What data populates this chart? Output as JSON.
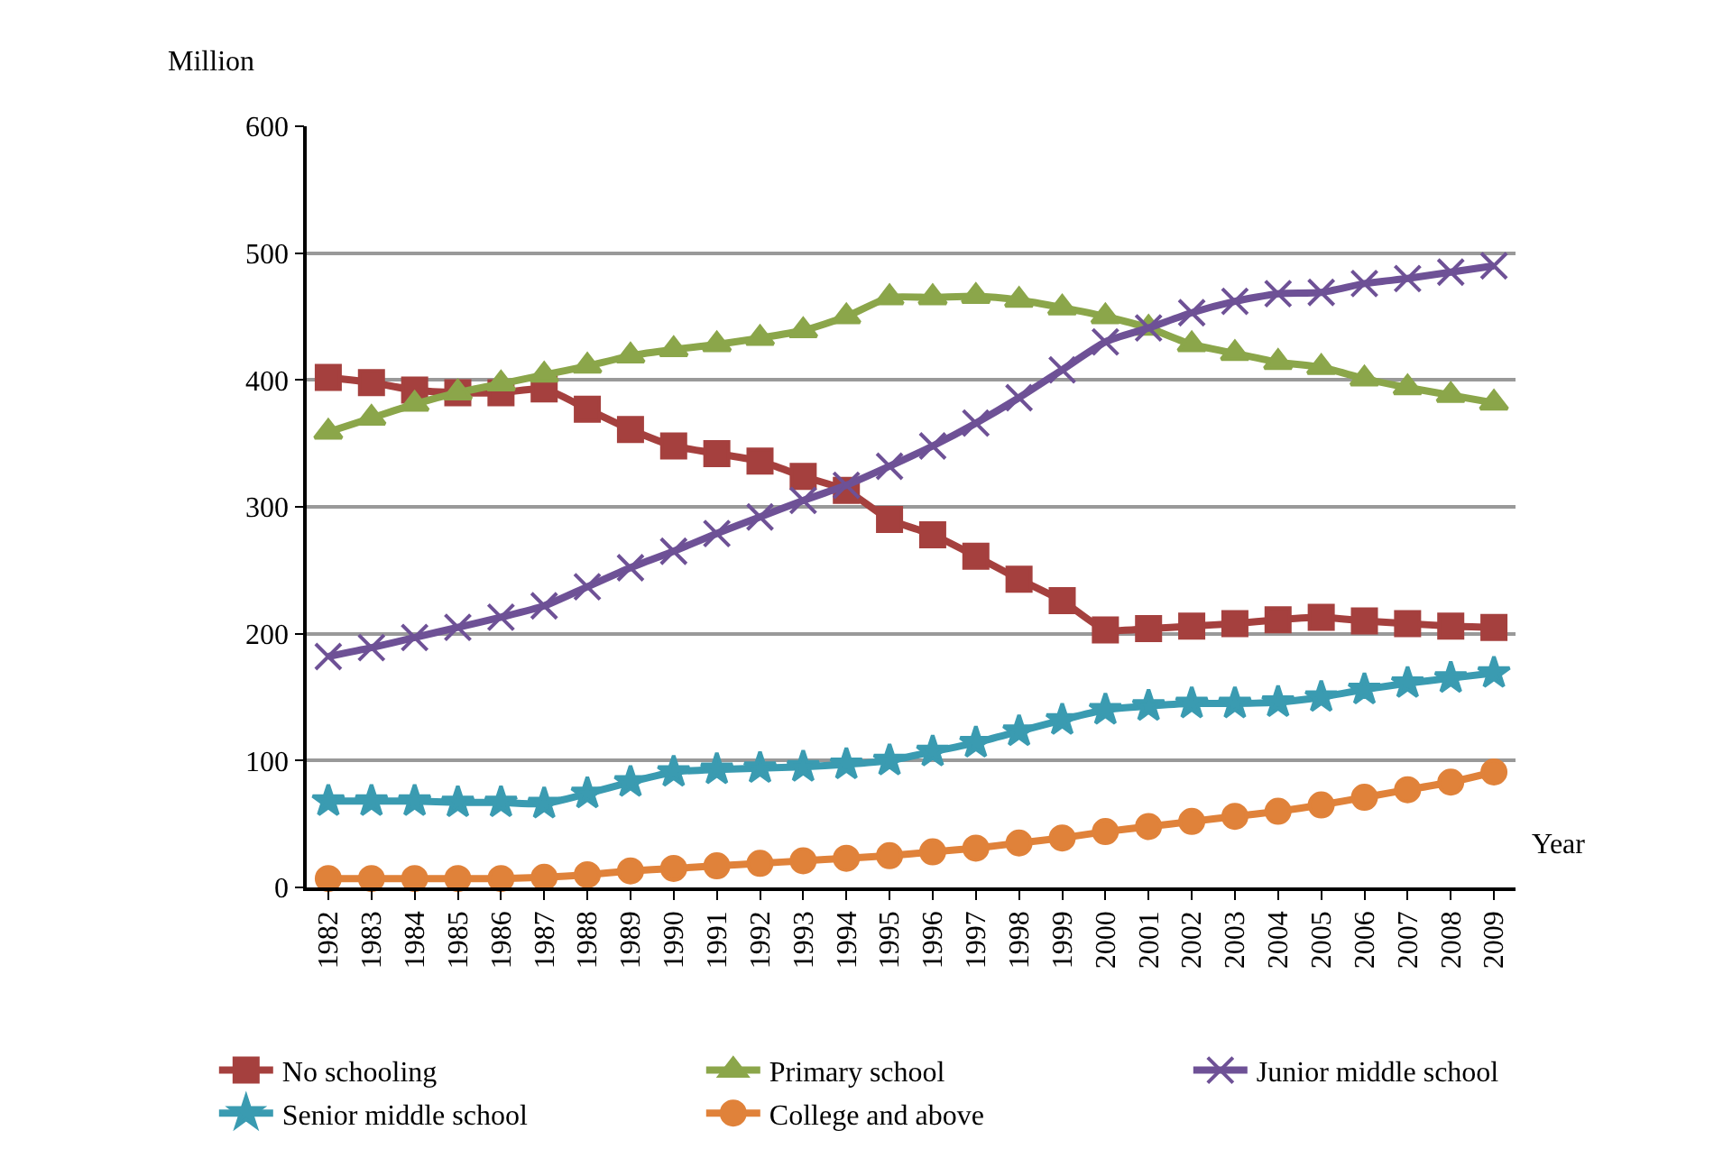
{
  "chart_data": {
    "type": "line",
    "ylabel": "Million",
    "xlabel": "Year",
    "categories": [
      "1982",
      "1983",
      "1984",
      "1985",
      "1986",
      "1987",
      "1988",
      "1989",
      "1990",
      "1991",
      "1992",
      "1993",
      "1994",
      "1995",
      "1996",
      "1997",
      "1998",
      "1999",
      "2000",
      "2001",
      "2002",
      "2003",
      "2004",
      "2005",
      "2006",
      "2007",
      "2008",
      "2009"
    ],
    "ylim": [
      0,
      600
    ],
    "yticks": [
      0,
      100,
      200,
      300,
      400,
      500,
      600
    ],
    "grid": "y",
    "legend": "bottom",
    "line_style": "solid",
    "series": [
      {
        "name": "No schooling",
        "color": "#a5403e",
        "marker": "square",
        "values": [
          402,
          398,
          392,
          390,
          390,
          393,
          377,
          361,
          348,
          342,
          336,
          324,
          313,
          290,
          278,
          261,
          243,
          226,
          203,
          204,
          206,
          208,
          211,
          213,
          210,
          208,
          206,
          205
        ]
      },
      {
        "name": "Primary school",
        "color": "#8ba64a",
        "marker": "triangle",
        "values": [
          359,
          370,
          381,
          390,
          397,
          404,
          411,
          419,
          424,
          428,
          433,
          439,
          450,
          465,
          465,
          466,
          463,
          457,
          450,
          441,
          428,
          421,
          414,
          410,
          401,
          394,
          388,
          382
        ]
      },
      {
        "name": "Junior middle school",
        "color": "#6e5196",
        "marker": "cross",
        "values": [
          182,
          189,
          197,
          205,
          213,
          222,
          237,
          252,
          265,
          279,
          292,
          305,
          317,
          332,
          348,
          366,
          386,
          408,
          430,
          441,
          453,
          462,
          468,
          469,
          476,
          480,
          485,
          490
        ]
      },
      {
        "name": "Senior middle school",
        "color": "#3a9bb1",
        "marker": "star",
        "values": [
          68,
          68,
          68,
          67,
          67,
          66,
          74,
          83,
          91,
          93,
          94,
          95,
          97,
          100,
          107,
          114,
          123,
          132,
          140,
          143,
          145,
          145,
          146,
          150,
          156,
          161,
          165,
          169
        ]
      },
      {
        "name": "College and above",
        "color": "#e0823a",
        "marker": "circle",
        "values": [
          7,
          7,
          7,
          7,
          7,
          8,
          10,
          13,
          15,
          17,
          19,
          21,
          23,
          25,
          28,
          31,
          35,
          39,
          44,
          48,
          52,
          56,
          60,
          65,
          71,
          77,
          83,
          91
        ]
      }
    ]
  }
}
